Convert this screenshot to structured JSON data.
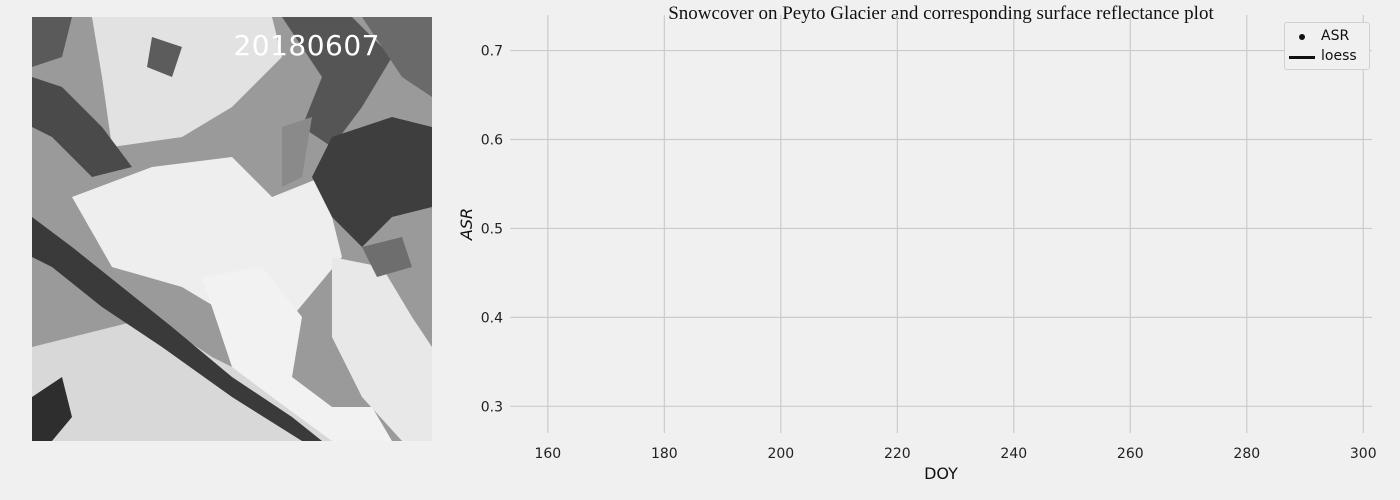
{
  "image_panel": {
    "date_label": "20180607"
  },
  "chart_data": {
    "type": "scatter",
    "title": "Snowcover on Peyto Glacier and corresponding surface reflectance plot",
    "xlabel": "DOY",
    "ylabel": "ASR",
    "xlim": [
      153.5,
      301.5
    ],
    "ylim": [
      0.27,
      0.74
    ],
    "x_ticks": [
      160,
      180,
      200,
      220,
      240,
      260,
      280,
      300
    ],
    "y_ticks": [
      0.3,
      0.4,
      0.5,
      0.6,
      0.7
    ],
    "grid": true,
    "legend_position": "top-right",
    "series": [
      {
        "name": "ASR",
        "marker": "dot",
        "x": [],
        "y": []
      },
      {
        "name": "loess",
        "marker": "line",
        "x": [],
        "y": []
      }
    ],
    "colors": {
      "background": "#f0f0f0",
      "grid": "#cbcbcb",
      "series": "#111111"
    }
  }
}
